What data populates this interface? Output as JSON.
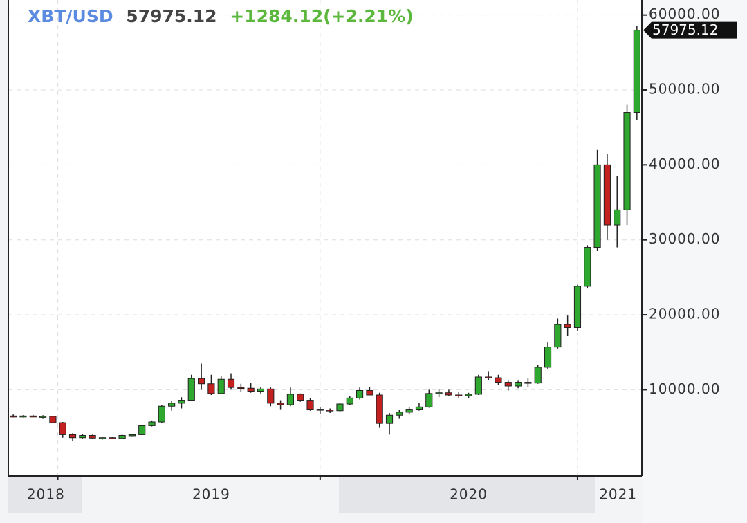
{
  "chart_data": {
    "type": "candlestick",
    "symbol": "XBT/USD",
    "last": 57975.12,
    "change": "+1284.12(+2.21%)",
    "up_color": "#2fa82f",
    "down_color": "#c42020",
    "ylim": [
      -1500,
      62000
    ],
    "yticks": [
      {
        "value": 10000,
        "label": "10000.00"
      },
      {
        "value": 20000,
        "label": "20000.00"
      },
      {
        "value": 30000,
        "label": "30000.00"
      },
      {
        "value": 40000,
        "label": "40000.00"
      },
      {
        "value": 50000,
        "label": "50000.00"
      },
      {
        "value": 60000,
        "label": "60000.00"
      }
    ],
    "xlim": [
      0,
      64
    ],
    "xticks": [
      {
        "value": 3.8,
        "label": "2018"
      },
      {
        "value": 20.5,
        "label": "2019"
      },
      {
        "value": 46.5,
        "label": "2020"
      },
      {
        "value": 61.6,
        "label": "2021"
      }
    ],
    "xgrid": [
      5,
      31.5,
      57.5
    ],
    "grid": true,
    "ohlc": [
      [
        6500,
        6700,
        6300,
        6450
      ],
      [
        6450,
        6600,
        6300,
        6500
      ],
      [
        6500,
        6650,
        6350,
        6400
      ],
      [
        6400,
        6600,
        6200,
        6450
      ],
      [
        6450,
        6500,
        5500,
        5600
      ],
      [
        5600,
        5700,
        3600,
        4000
      ],
      [
        4000,
        4200,
        3200,
        3600
      ],
      [
        3600,
        4100,
        3500,
        3900
      ],
      [
        3900,
        4000,
        3400,
        3550
      ],
      [
        3550,
        3700,
        3350,
        3600
      ],
      [
        3600,
        3700,
        3400,
        3500
      ],
      [
        3500,
        4000,
        3450,
        3900
      ],
      [
        3900,
        4100,
        3800,
        4000
      ],
      [
        4000,
        5300,
        3950,
        5200
      ],
      [
        5200,
        5900,
        5100,
        5700
      ],
      [
        5700,
        8000,
        5600,
        7800
      ],
      [
        7800,
        8500,
        7200,
        8200
      ],
      [
        8200,
        9000,
        7500,
        8600
      ],
      [
        8600,
        12000,
        8500,
        11500
      ],
      [
        11500,
        13500,
        10000,
        10800
      ],
      [
        10800,
        12000,
        9300,
        9500
      ],
      [
        9500,
        11800,
        9400,
        11400
      ],
      [
        11400,
        12200,
        10000,
        10300
      ],
      [
        10300,
        10800,
        9700,
        10200
      ],
      [
        10200,
        10900,
        9600,
        9800
      ],
      [
        9800,
        10400,
        9500,
        10100
      ],
      [
        10100,
        10300,
        7800,
        8200
      ],
      [
        8200,
        8600,
        7400,
        8000
      ],
      [
        8000,
        10300,
        7800,
        9400
      ],
      [
        9400,
        9500,
        8400,
        8600
      ],
      [
        8600,
        8900,
        7200,
        7400
      ],
      [
        7400,
        7700,
        6800,
        7300
      ],
      [
        7300,
        7500,
        6900,
        7200
      ],
      [
        7200,
        8200,
        7100,
        8100
      ],
      [
        8100,
        9200,
        8000,
        8900
      ],
      [
        8900,
        10300,
        8700,
        9900
      ],
      [
        9900,
        10400,
        9400,
        9300
      ],
      [
        9300,
        9600,
        5000,
        5500
      ],
      [
        5500,
        6900,
        4000,
        6600
      ],
      [
        6600,
        7300,
        6200,
        7000
      ],
      [
        7000,
        7700,
        6700,
        7400
      ],
      [
        7400,
        8200,
        7200,
        7700
      ],
      [
        7700,
        10000,
        7600,
        9500
      ],
      [
        9500,
        10100,
        9000,
        9600
      ],
      [
        9600,
        10000,
        9200,
        9300
      ],
      [
        9300,
        9700,
        8900,
        9200
      ],
      [
        9200,
        9600,
        8900,
        9400
      ],
      [
        9400,
        12000,
        9300,
        11700
      ],
      [
        11700,
        12400,
        11300,
        11600
      ],
      [
        11600,
        12000,
        10600,
        11000
      ],
      [
        11000,
        11200,
        9900,
        10500
      ],
      [
        10500,
        11200,
        10200,
        11000
      ],
      [
        11000,
        11500,
        10400,
        10900
      ],
      [
        10900,
        13300,
        10800,
        13000
      ],
      [
        13000,
        16300,
        12800,
        15700
      ],
      [
        15700,
        19500,
        15500,
        18700
      ],
      [
        18700,
        19900,
        17200,
        18300
      ],
      [
        18300,
        24000,
        17800,
        23800
      ],
      [
        23800,
        29300,
        23500,
        29000
      ],
      [
        29000,
        42000,
        28500,
        40000
      ],
      [
        40000,
        41500,
        30000,
        32000
      ],
      [
        32000,
        38500,
        29000,
        34000
      ],
      [
        34000,
        48000,
        32000,
        47000
      ],
      [
        47000,
        58500,
        46000,
        57975.12
      ]
    ]
  }
}
